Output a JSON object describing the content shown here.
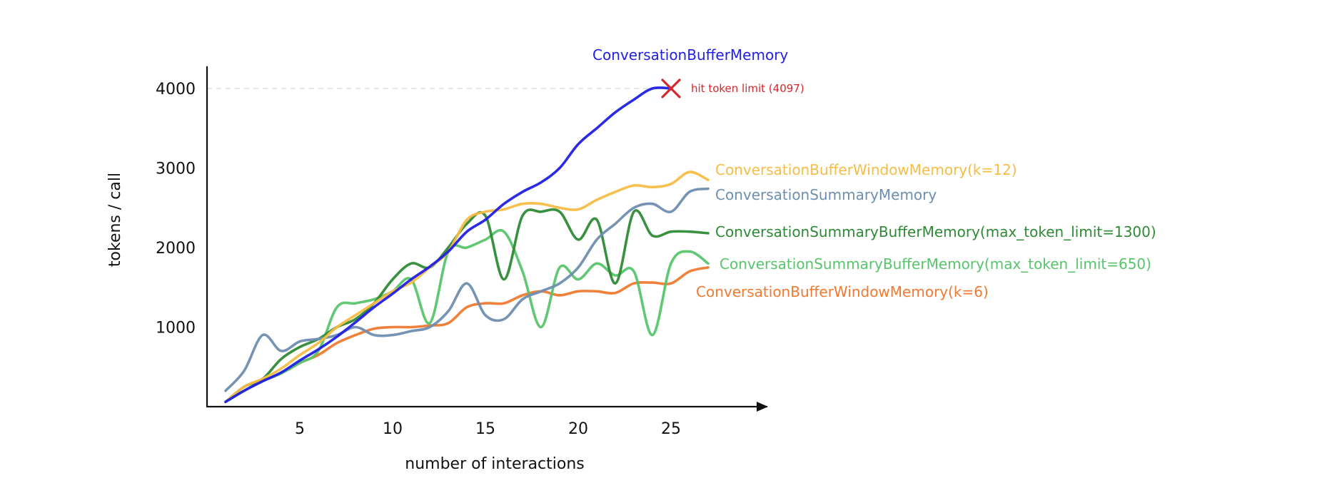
{
  "chart_data": {
    "type": "line",
    "title": "",
    "xlabel": "number of interactions",
    "ylabel": "tokens / call",
    "xlim": [
      0,
      29
    ],
    "ylim": [
      0,
      4200
    ],
    "x_ticks": [
      5,
      10,
      15,
      20,
      25
    ],
    "y_ticks": [
      1000,
      2000,
      3000,
      4000
    ],
    "grid": false,
    "reference_line": {
      "y": 4000,
      "style": "dashed"
    },
    "token_limit_marker": {
      "x": 25,
      "y": 4000,
      "label": "hit token limit (4097)",
      "color": "#d9262b"
    },
    "series": [
      {
        "name": "ConversationBufferMemory",
        "color": "#1f1fe6",
        "x": [
          1,
          2,
          3,
          4,
          5,
          6,
          7,
          8,
          9,
          10,
          11,
          12,
          13,
          14,
          15,
          16,
          17,
          18,
          19,
          20,
          21,
          22,
          23,
          24,
          25
        ],
        "values": [
          60,
          200,
          320,
          430,
          580,
          720,
          880,
          1060,
          1250,
          1420,
          1600,
          1760,
          1950,
          2200,
          2350,
          2550,
          2700,
          2820,
          3000,
          3300,
          3500,
          3700,
          3860,
          4000,
          4000
        ]
      },
      {
        "name": "ConversationBufferWindowMemory(k=12)",
        "color": "#f5bd45",
        "x": [
          1,
          2,
          3,
          4,
          5,
          6,
          7,
          8,
          9,
          10,
          11,
          12,
          13,
          14,
          15,
          16,
          17,
          18,
          19,
          20,
          21,
          22,
          23,
          24,
          25,
          26,
          27
        ],
        "values": [
          60,
          250,
          350,
          480,
          650,
          800,
          1000,
          1150,
          1300,
          1450,
          1560,
          1750,
          1950,
          2350,
          2450,
          2480,
          2550,
          2550,
          2500,
          2480,
          2600,
          2700,
          2780,
          2760,
          2800,
          2950,
          2850
        ]
      },
      {
        "name": "ConversationSummaryMemory",
        "color": "#6e8eb0",
        "x": [
          1,
          2,
          3,
          4,
          5,
          6,
          7,
          8,
          9,
          10,
          11,
          12,
          13,
          14,
          15,
          16,
          17,
          18,
          19,
          20,
          21,
          22,
          23,
          24,
          25,
          26,
          27
        ],
        "values": [
          200,
          450,
          900,
          700,
          820,
          850,
          900,
          1000,
          900,
          900,
          950,
          1000,
          1200,
          1550,
          1150,
          1100,
          1350,
          1450,
          1550,
          1750,
          2100,
          2300,
          2500,
          2550,
          2450,
          2700,
          2740
        ]
      },
      {
        "name": "ConversationSummaryBufferMemory(max_token_limit=1300)",
        "color": "#2e8a35",
        "x": [
          1,
          2,
          3,
          4,
          5,
          6,
          7,
          8,
          9,
          10,
          11,
          12,
          13,
          14,
          15,
          16,
          17,
          18,
          19,
          20,
          21,
          22,
          23,
          24,
          25,
          26,
          27
        ],
        "values": [
          60,
          250,
          350,
          600,
          750,
          850,
          1000,
          1100,
          1300,
          1600,
          1800,
          1750,
          2000,
          2300,
          2400,
          1600,
          2400,
          2450,
          2450,
          2100,
          2350,
          1550,
          2450,
          2150,
          2200,
          2200,
          2180
        ]
      },
      {
        "name": "ConversationSummaryBufferMemory(max_token_limit=650)",
        "color": "#57c46c",
        "x": [
          1,
          2,
          3,
          4,
          5,
          6,
          7,
          8,
          9,
          10,
          11,
          12,
          13,
          14,
          15,
          16,
          17,
          18,
          19,
          20,
          21,
          22,
          23,
          24,
          25,
          26,
          27
        ],
        "values": [
          60,
          200,
          320,
          420,
          550,
          700,
          1250,
          1300,
          1350,
          1450,
          1600,
          1050,
          1950,
          2000,
          2100,
          2200,
          1700,
          1000,
          1750,
          1600,
          1800,
          1650,
          1700,
          900,
          1800,
          1950,
          1800
        ]
      },
      {
        "name": "ConversationBufferWindowMemory(k=6)",
        "color": "#f07a2f",
        "x": [
          1,
          2,
          3,
          4,
          5,
          6,
          7,
          8,
          9,
          10,
          11,
          12,
          13,
          14,
          15,
          16,
          17,
          18,
          19,
          20,
          21,
          22,
          23,
          24,
          25,
          26,
          27
        ],
        "values": [
          60,
          200,
          320,
          420,
          550,
          650,
          800,
          900,
          980,
          1000,
          1000,
          1020,
          1050,
          1250,
          1300,
          1300,
          1400,
          1450,
          1400,
          1450,
          1450,
          1430,
          1550,
          1560,
          1550,
          1700,
          1750
        ]
      }
    ]
  }
}
